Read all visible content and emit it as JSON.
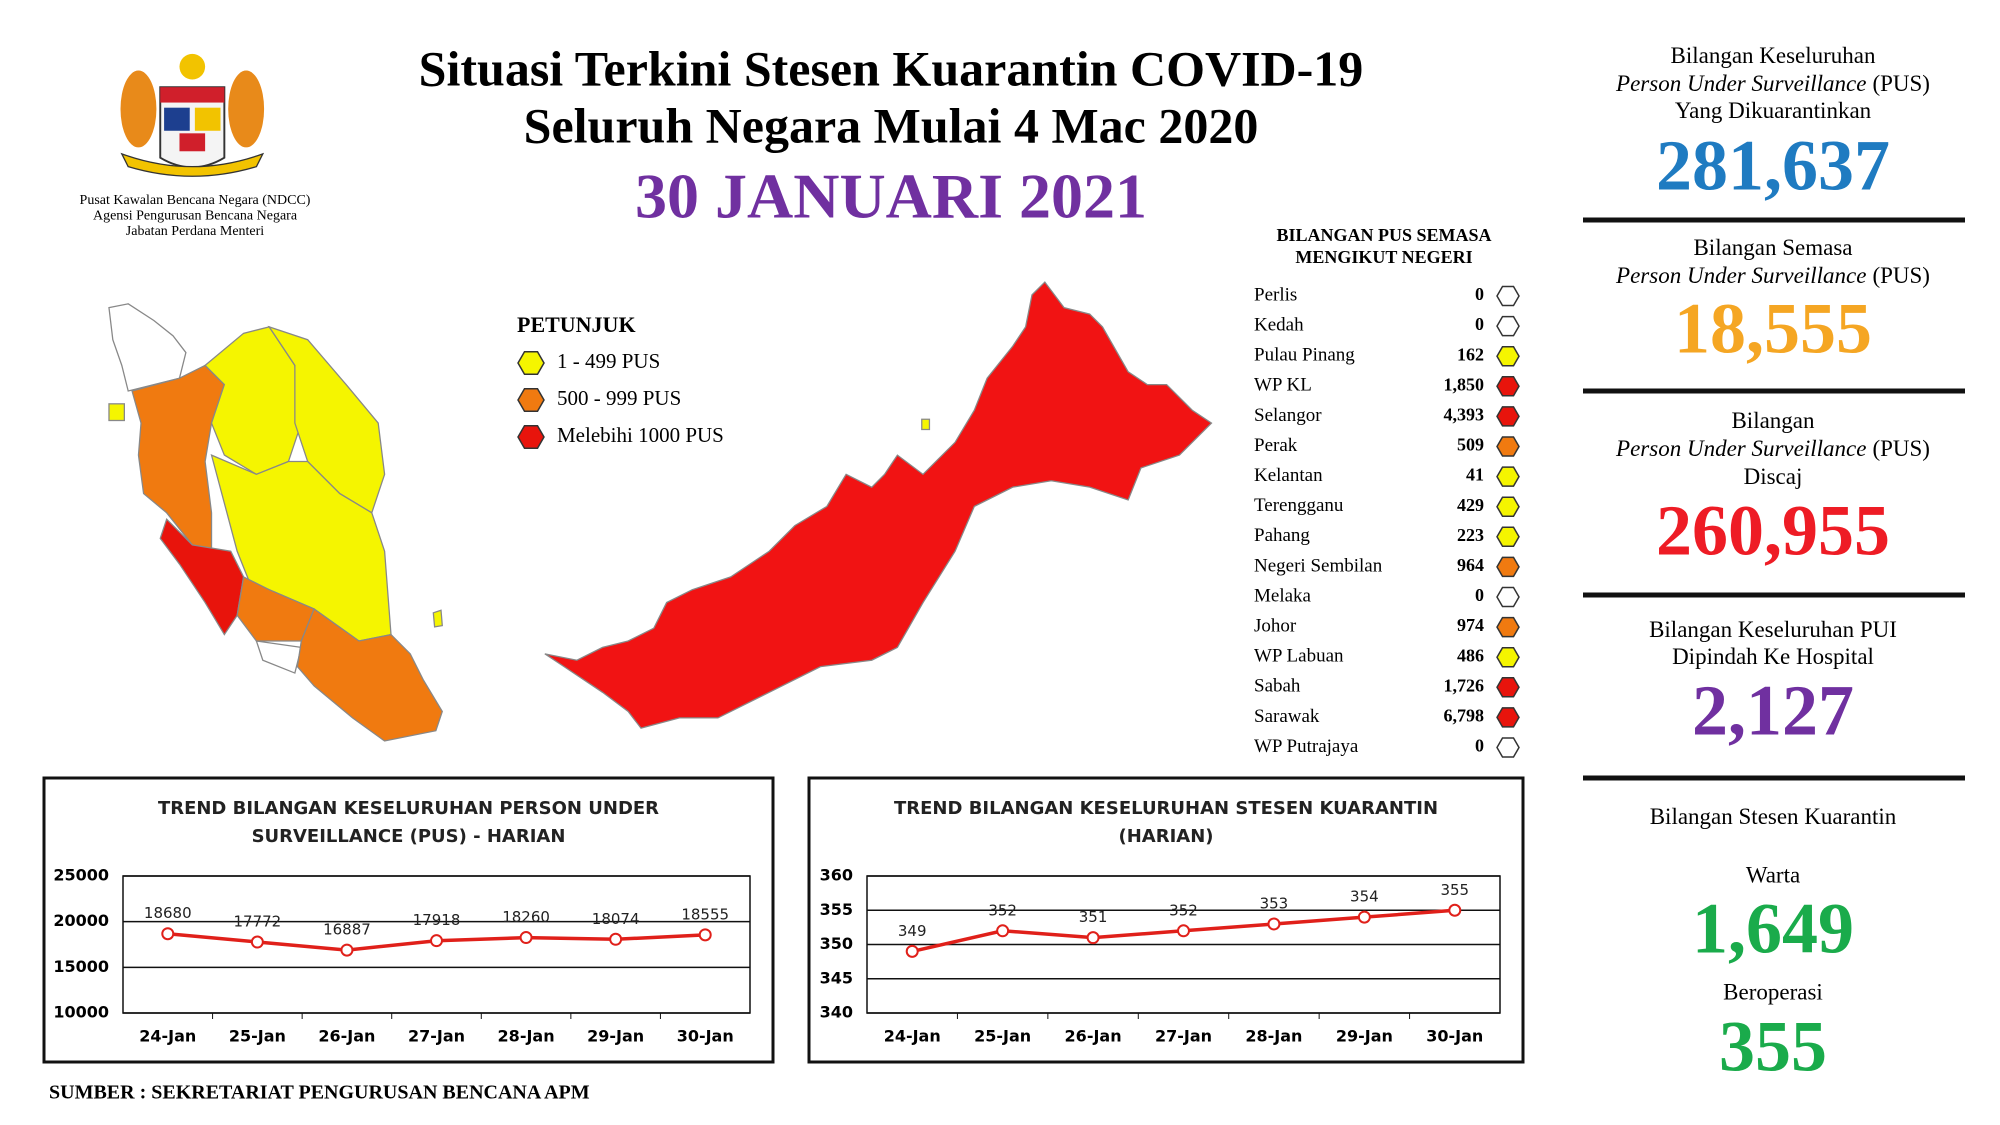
{
  "header": {
    "title_lines": [
      "Situasi Terkini Stesen Kuarantin COVID-19",
      "Seluruh Negara Mulai 4 Mac 2020"
    ],
    "date": "30 JANUARI 2021",
    "agency_lines": [
      "Pusat Kawalan Bencana Negara (NDCC)",
      "Agensi Pengurusan Bencana Negara",
      "Jabatan Perdana Menteri"
    ]
  },
  "legend": {
    "title": "PETUNJUK",
    "items": [
      {
        "label": "1 - 499 PUS",
        "color": "#f5f500"
      },
      {
        "label": "500 - 999 PUS",
        "color": "#f07a10"
      },
      {
        "label": "Melebihi 1000 PUS",
        "color": "#e8140c"
      }
    ]
  },
  "states": {
    "title_lines": [
      "BILANGAN PUS SEMASA",
      "MENGIKUT NEGERI"
    ],
    "rows": [
      {
        "name": "Perlis",
        "value": "0",
        "color": "#ffffff"
      },
      {
        "name": "Kedah",
        "value": "0",
        "color": "#ffffff"
      },
      {
        "name": "Pulau Pinang",
        "value": "162",
        "color": "#f5f500"
      },
      {
        "name": "WP KL",
        "value": "1,850",
        "color": "#e8140c"
      },
      {
        "name": "Selangor",
        "value": "4,393",
        "color": "#e8140c"
      },
      {
        "name": "Perak",
        "value": "509",
        "color": "#f07a10"
      },
      {
        "name": "Kelantan",
        "value": "41",
        "color": "#f5f500"
      },
      {
        "name": "Terengganu",
        "value": "429",
        "color": "#f5f500"
      },
      {
        "name": "Pahang",
        "value": "223",
        "color": "#f5f500"
      },
      {
        "name": "Negeri Sembilan",
        "value": "964",
        "color": "#f07a10"
      },
      {
        "name": "Melaka",
        "value": "0",
        "color": "#ffffff"
      },
      {
        "name": "Johor",
        "value": "974",
        "color": "#f07a10"
      },
      {
        "name": "WP Labuan",
        "value": "486",
        "color": "#f5f500"
      },
      {
        "name": "Sabah",
        "value": "1,726",
        "color": "#e8140c"
      },
      {
        "name": "Sarawak",
        "value": "6,798",
        "color": "#e8140c"
      },
      {
        "name": "WP Putrajaya",
        "value": "0",
        "color": "#ffffff"
      }
    ]
  },
  "stats": [
    {
      "lines": [
        {
          "text": "Bilangan Keseluruhan"
        },
        {
          "italic": "Person Under Surveillance",
          "text": "(PUS)"
        },
        {
          "text": "Yang Dikuarantinkan"
        }
      ],
      "value": "281,637",
      "color": "#1f7bc1"
    },
    {
      "lines": [
        {
          "text": "Bilangan Semasa"
        },
        {
          "italic": "Person Under Surveillance",
          "text": "(PUS)"
        }
      ],
      "value": "18,555",
      "color": "#f5a623"
    },
    {
      "lines": [
        {
          "text": "Bilangan"
        },
        {
          "italic": "Person Under Surveillance",
          "text": "(PUS)"
        },
        {
          "text": "Discaj"
        }
      ],
      "value": "260,955",
      "color": "#ee1c25"
    },
    {
      "lines": [
        {
          "text": "Bilangan Keseluruhan PUI"
        },
        {
          "text": "Dipindah Ke Hospital"
        }
      ],
      "value": "2,127",
      "color": "#7030a0"
    },
    {
      "lines": [
        {
          "text": "Bilangan Stesen Kuarantin"
        }
      ],
      "items": [
        {
          "label": "Warta",
          "value": "1,649"
        },
        {
          "label": "Beroperasi",
          "value": "355"
        }
      ],
      "color": "#1aab4b"
    }
  ],
  "chart_data": [
    {
      "type": "line",
      "title": [
        "TREND BILANGAN KESELURUHAN PERSON UNDER",
        "SURVEILLANCE (PUS) - HARIAN"
      ],
      "categories": [
        "24-Jan",
        "25-Jan",
        "26-Jan",
        "27-Jan",
        "28-Jan",
        "29-Jan",
        "30-Jan"
      ],
      "values": [
        18680,
        17772,
        16887,
        17918,
        18260,
        18074,
        18555
      ],
      "color": "#e0201a",
      "ylim": [
        10000,
        25000
      ],
      "yticks": [
        10000,
        15000,
        20000,
        25000
      ],
      "grid": true
    },
    {
      "type": "line",
      "title": [
        "TREND BILANGAN KESELURUHAN STESEN KUARANTIN",
        "(HARIAN)"
      ],
      "categories": [
        "24-Jan",
        "25-Jan",
        "26-Jan",
        "27-Jan",
        "28-Jan",
        "29-Jan",
        "30-Jan"
      ],
      "values": [
        349,
        352,
        351,
        352,
        353,
        354,
        355
      ],
      "color": "#e0201a",
      "ylim": [
        340,
        360
      ],
      "yticks": [
        340,
        345,
        350,
        355,
        360
      ],
      "grid": true
    }
  ],
  "source": "SUMBER : SEKRETARIAT PENGURUSAN BENCANA APM"
}
